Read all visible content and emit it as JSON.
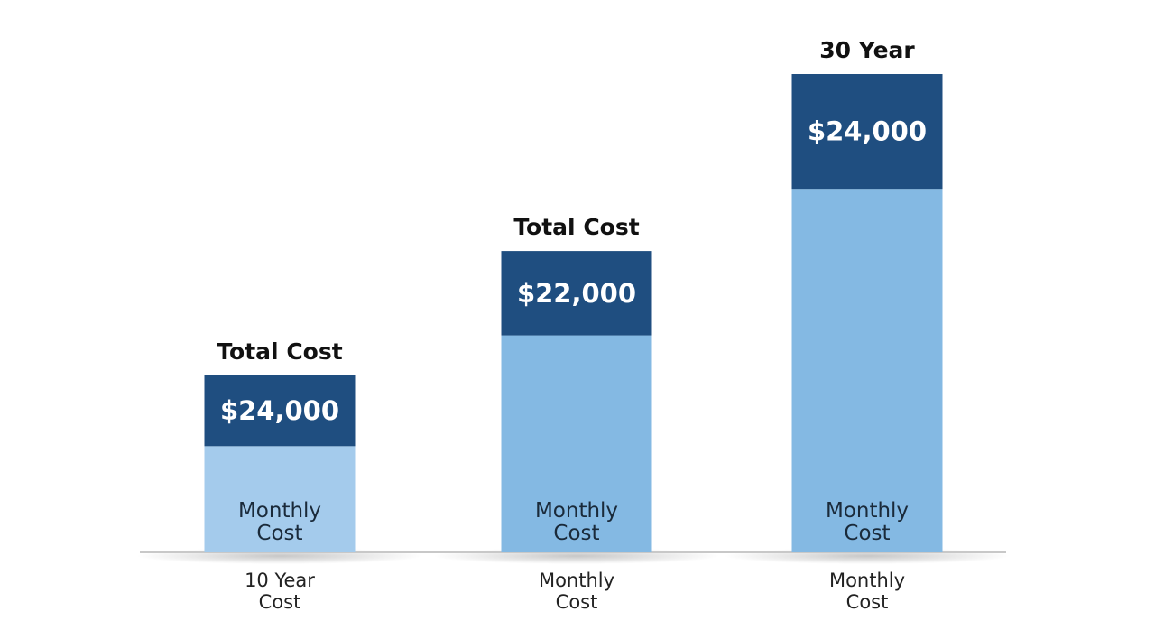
{
  "chart_data": {
    "type": "bar",
    "stacked": true,
    "grid": false,
    "categories": [
      [
        "10 Year",
        "Cost"
      ],
      [
        "Monthly",
        "Cost"
      ],
      [
        "Monthly",
        "Cost"
      ]
    ],
    "top_labels": [
      "Total Cost",
      "Total Cost",
      "30 Year"
    ],
    "value_labels": [
      "$24,000",
      "$22,000",
      "$24,000"
    ],
    "inner_labels": [
      [
        "Monthly",
        "Cost"
      ],
      [
        "Monthly",
        "Cost"
      ],
      [
        "Monthly",
        "Cost"
      ]
    ],
    "relative_heights": [
      0.37,
      0.63,
      1.0
    ],
    "top_segment_share": [
      0.4,
      0.28,
      0.24
    ],
    "colors": {
      "top_segment": "#1f4e80",
      "bottom_segments": [
        "#a4cbec",
        "#84b9e3",
        "#84b9e3"
      ],
      "baseline": "#c8c8c8"
    }
  }
}
